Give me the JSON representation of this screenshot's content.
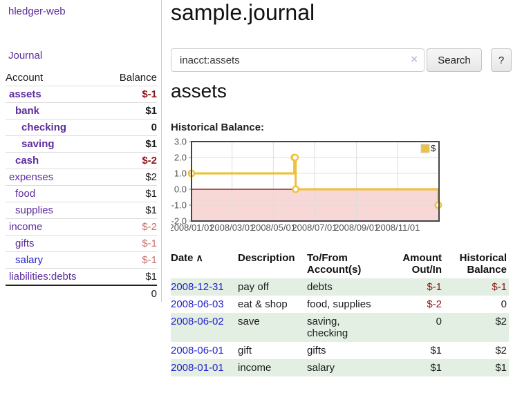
{
  "app": {
    "brand": "hledger-web",
    "nav_journal": "Journal"
  },
  "colors": {
    "link_purple": "#5c2d9c",
    "link_blue": "#2323cc",
    "negative_strong": "#8b1515",
    "negative_soft": "#c4706c",
    "row_stripe_green": "#e3efe3"
  },
  "icons": {
    "sort_asc_icon": "∧",
    "clear_icon": "×"
  },
  "sidebar": {
    "header": {
      "account": "Account",
      "balance": "Balance"
    },
    "accounts": [
      {
        "name": "assets",
        "indent": 1,
        "balance": "$-1",
        "bold": true,
        "neg": "strong"
      },
      {
        "name": "bank",
        "indent": 2,
        "balance": "$1",
        "bold": true,
        "neg": "none"
      },
      {
        "name": "checking",
        "indent": 3,
        "balance": "0",
        "bold": true,
        "neg": "none"
      },
      {
        "name": "saving",
        "indent": 3,
        "balance": "$1",
        "bold": true,
        "neg": "none"
      },
      {
        "name": "cash",
        "indent": 2,
        "balance": "$-2",
        "bold": true,
        "neg": "strong"
      },
      {
        "name": "expenses",
        "indent": 1,
        "balance": "$2",
        "bold": false,
        "neg": "none"
      },
      {
        "name": "food",
        "indent": 2,
        "balance": "$1",
        "bold": false,
        "neg": "none"
      },
      {
        "name": "supplies",
        "indent": 2,
        "balance": "$1",
        "bold": false,
        "neg": "none"
      },
      {
        "name": "income",
        "indent": 1,
        "balance": "$-2",
        "bold": false,
        "neg": "soft"
      },
      {
        "name": "gifts",
        "indent": 2,
        "balance": "$-1",
        "bold": false,
        "neg": "soft"
      },
      {
        "name": "salary",
        "indent": 2,
        "balance": "$-1",
        "bold": false,
        "neg": "soft",
        "blue": true
      },
      {
        "name": "liabilities:debts",
        "indent": 1,
        "balance": "$1",
        "bold": false,
        "neg": "none"
      }
    ],
    "total": "0"
  },
  "header": {
    "title": "sample.journal"
  },
  "search": {
    "value": "inacct:assets",
    "button": "Search",
    "help": "?"
  },
  "account_page": {
    "heading": "assets",
    "chart_title": "Historical Balance:"
  },
  "chart_data": {
    "type": "line",
    "step": true,
    "title": "Historical Balance:",
    "series": [
      {
        "name": "$",
        "color": "#edc240",
        "points": [
          [
            "2008-01-01",
            1
          ],
          [
            "2008-06-01",
            2
          ],
          [
            "2008-06-02",
            2
          ],
          [
            "2008-06-03",
            0
          ],
          [
            "2008-12-31",
            -1
          ]
        ]
      }
    ],
    "xlim": [
      "2008-01-01",
      "2009-01-01"
    ],
    "ylim": [
      -2,
      3
    ],
    "xticks": [
      "2008/01/01",
      "2008/03/01",
      "2008/05/01",
      "2008/07/01",
      "2008/09/01",
      "2008/11/01"
    ],
    "ytick_labels": [
      "3.0",
      "2.0",
      "1.0",
      "0.0",
      "-1.0",
      "-2.0"
    ],
    "ytick_values": [
      3,
      2,
      1,
      0,
      -1,
      -2
    ],
    "grid": true,
    "gridline_color": "#dddddd",
    "plot_border_color": "#444444",
    "zero_line_color": "#8b0000",
    "negative_region_color": "#f8d7d7",
    "tick_label_color": "#545454",
    "legend": {
      "label": "$",
      "position": "top-right",
      "box_color": "#edc240"
    }
  },
  "register": {
    "columns": [
      {
        "lines": [
          "Date"
        ],
        "align": "left",
        "sorted_asc": true
      },
      {
        "lines": [
          "Description"
        ],
        "align": "left"
      },
      {
        "lines": [
          "To/From",
          "Account(s)"
        ],
        "align": "left"
      },
      {
        "lines": [
          "Amount",
          "Out/In"
        ],
        "align": "right"
      },
      {
        "lines": [
          "Historical",
          "Balance"
        ],
        "align": "right"
      }
    ],
    "rows": [
      {
        "date": "2008-12-31",
        "description": "pay off",
        "accounts": "debts",
        "amount": "$-1",
        "amount_neg": true,
        "balance": "$-1",
        "balance_neg": true,
        "shaded": true
      },
      {
        "date": "2008-06-03",
        "description": "eat & shop",
        "accounts": "food, supplies",
        "amount": "$-2",
        "amount_neg": true,
        "balance": "0",
        "balance_neg": false,
        "shaded": false
      },
      {
        "date": "2008-06-02",
        "description": "save",
        "accounts": "saving, checking",
        "amount": "0",
        "amount_neg": false,
        "balance": "$2",
        "balance_neg": false,
        "shaded": true
      },
      {
        "date": "2008-06-01",
        "description": "gift",
        "accounts": "gifts",
        "amount": "$1",
        "amount_neg": false,
        "balance": "$2",
        "balance_neg": false,
        "shaded": false
      },
      {
        "date": "2008-01-01",
        "description": "income",
        "accounts": "salary",
        "amount": "$1",
        "amount_neg": false,
        "balance": "$1",
        "balance_neg": false,
        "shaded": true
      }
    ]
  }
}
